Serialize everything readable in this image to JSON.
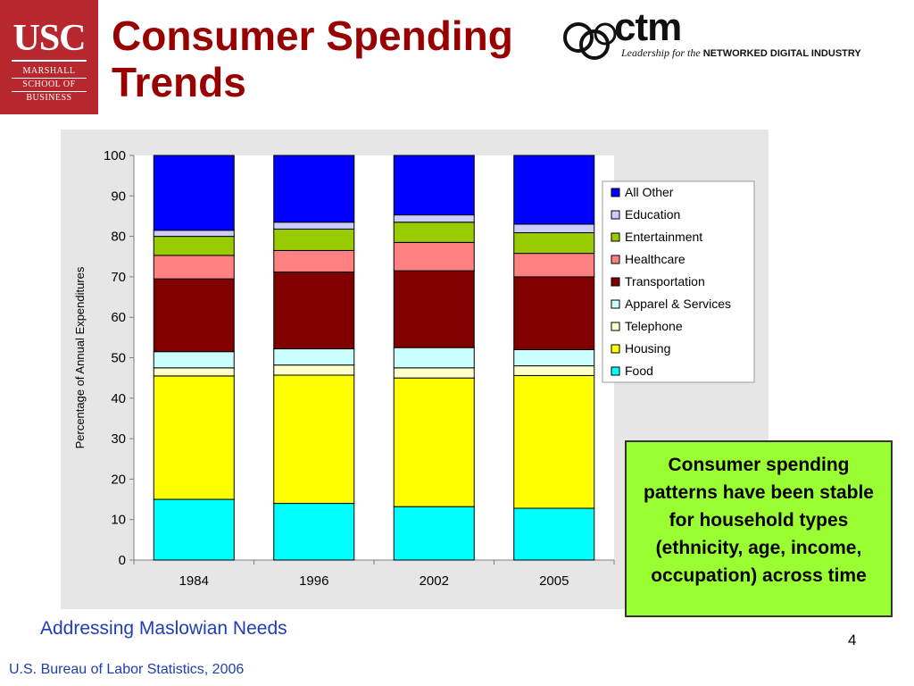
{
  "logo": {
    "usc": "USC",
    "line1": "MARSHALL",
    "line2": "SCHOOL OF",
    "line3": "BUSINESS"
  },
  "title_line1": "Consumer Spending",
  "title_line2": "Trends",
  "ctm": {
    "word": "ctm",
    "tag_italic": "Leadership for the",
    "tag_bold": "NETWORKED DIGITAL INDUSTRY"
  },
  "chart_data": {
    "type": "bar",
    "stacked": true,
    "categories": [
      "1984",
      "1996",
      "2002",
      "2005"
    ],
    "ylabel": "Percentage of Annual Expenditures",
    "xlabel": "",
    "ylim": [
      0,
      100
    ],
    "yticks": [
      0,
      10,
      20,
      30,
      40,
      50,
      60,
      70,
      80,
      90,
      100
    ],
    "legend_position": "right",
    "series": [
      {
        "name": "Food",
        "color": "#00ffff",
        "values": [
          15,
          14,
          13.2,
          12.8
        ]
      },
      {
        "name": "Housing",
        "color": "#ffff00",
        "values": [
          30.5,
          31.7,
          31.8,
          32.8
        ]
      },
      {
        "name": "Telephone",
        "color": "#ffffcc",
        "values": [
          2,
          2.5,
          2.5,
          2.4
        ]
      },
      {
        "name": "Apparel & Services",
        "color": "#ccffff",
        "values": [
          4,
          4,
          5,
          4
        ]
      },
      {
        "name": "Transportation",
        "color": "#800000",
        "values": [
          18,
          19,
          19,
          18
        ]
      },
      {
        "name": "Healthcare",
        "color": "#ff8080",
        "values": [
          5.8,
          5.3,
          7,
          5.8
        ]
      },
      {
        "name": "Entertainment",
        "color": "#99cc00",
        "values": [
          4.7,
          5.3,
          5,
          5.1
        ]
      },
      {
        "name": "Education",
        "color": "#ccccff",
        "values": [
          1.5,
          1.7,
          1.8,
          2.1
        ]
      },
      {
        "name": "All Other",
        "color": "#0000ff",
        "values": [
          18.5,
          16.5,
          14.7,
          17
        ]
      }
    ]
  },
  "note": "Consumer spending patterns have been stable for household types (ethnicity, age, income, occupation) across time",
  "subtitle": "Addressing Maslowian Needs",
  "page_number": "4",
  "source": "U.S. Bureau of Labor Statistics, 2006"
}
